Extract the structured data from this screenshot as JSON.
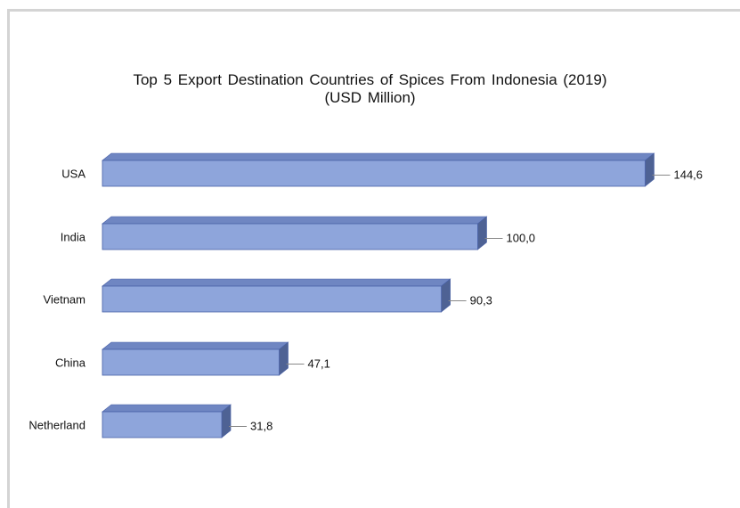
{
  "chart_data": {
    "type": "bar",
    "orientation": "horizontal",
    "title": "Top 5 Export Destination Countries of Spices From Indonesia (2019)",
    "subtitle": "(USD Million)",
    "categories": [
      "USA",
      "India",
      "Vietnam",
      "China",
      "Netherland"
    ],
    "values": [
      144.6,
      100.0,
      90.3,
      47.1,
      31.8
    ],
    "data_labels": [
      "144,6",
      "100,0",
      "90,3",
      "47,1",
      "31,8"
    ],
    "xlim": [
      0,
      150
    ],
    "grid": false,
    "legend": "none",
    "colors": {
      "bar_front": "#8ea5db",
      "bar_top": "#6f86c2",
      "bar_side": "#4e6294",
      "bar_edge": "#4a62a8"
    }
  }
}
